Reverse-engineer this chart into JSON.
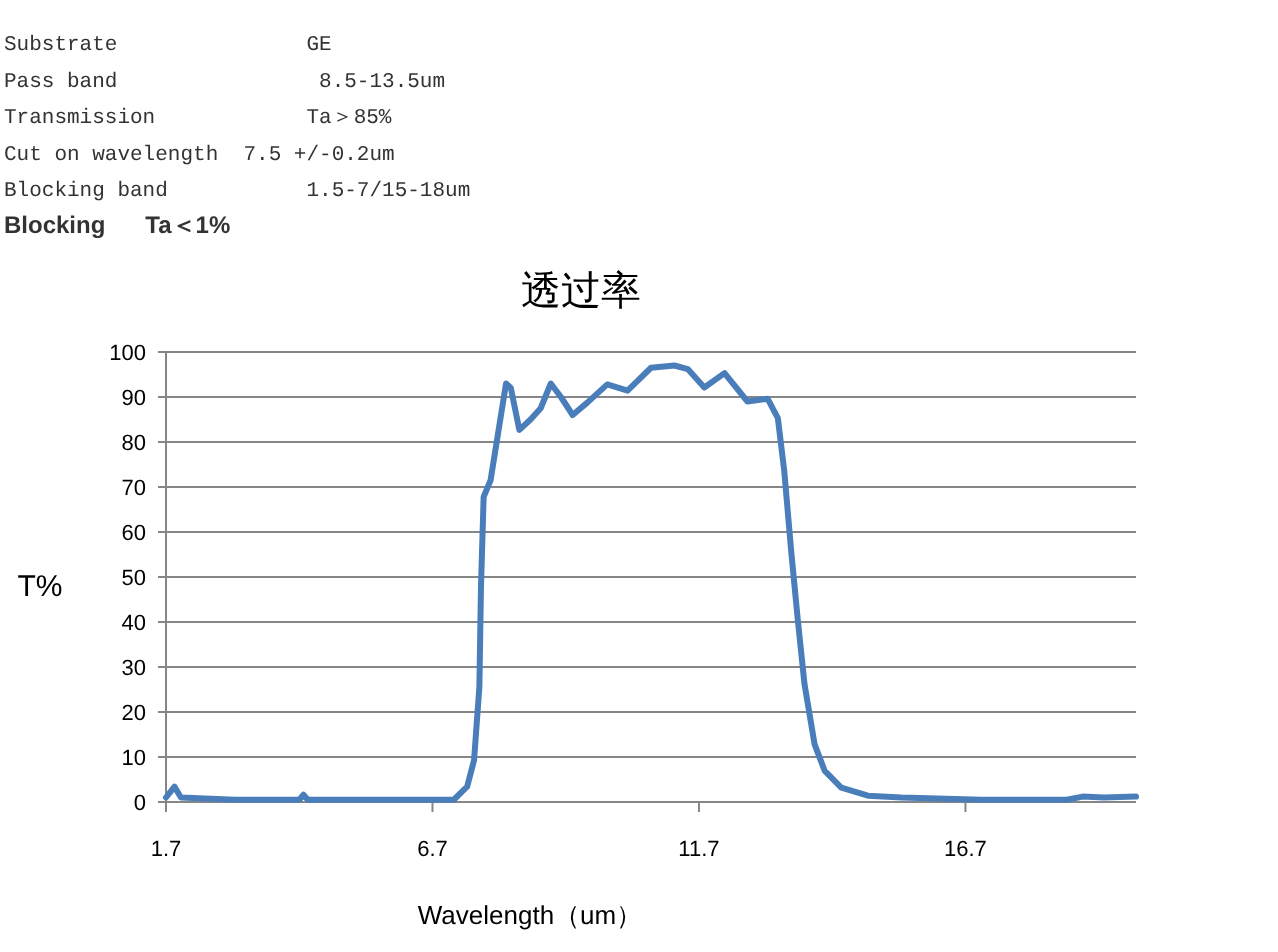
{
  "chart_data": {
    "type": "line",
    "title": "透过率",
    "xlabel": "Wavelength（um）",
    "ylabel": "T%",
    "annotations": [
      "Substrate               GE",
      "Pass band                8.5-13.5um",
      "Transmission            Ta＞85%",
      "Cut on wavelength  7.5 +/-0.2um",
      "Blocking band           1.5-7/15-18um",
      "Blocking      Ta＜1%"
    ],
    "x": [
      1.7,
      1.86,
      1.98,
      3.0,
      4.2,
      4.28,
      4.36,
      5.5,
      7.1,
      7.35,
      7.48,
      7.58,
      7.61,
      7.66,
      7.79,
      7.91,
      8.08,
      8.17,
      8.33,
      8.54,
      8.73,
      8.92,
      9.11,
      9.33,
      9.61,
      9.98,
      10.36,
      10.8,
      11.24,
      11.49,
      11.8,
      12.18,
      12.61,
      12.99,
      13.18,
      13.3,
      13.43,
      13.55,
      13.68,
      13.87,
      14.06,
      14.37,
      14.87,
      15.5,
      17.0,
      18.6,
      18.9,
      19.3,
      19.9
    ],
    "series": [
      {
        "color": "#4a7ebb",
        "values": [
          1,
          3.4,
          1,
          0.5,
          0.5,
          1.6,
          0.5,
          0.5,
          0.5,
          3.4,
          9.3,
          25.6,
          47.9,
          67.8,
          71.5,
          80.4,
          93,
          92,
          82.7,
          85,
          87.5,
          93,
          90,
          86,
          88.8,
          92.8,
          91.4,
          96.5,
          97,
          96.2,
          92.1,
          95.3,
          89,
          89.6,
          85.3,
          73.6,
          55.8,
          41,
          26.2,
          12.8,
          6.9,
          3.2,
          1.4,
          1,
          0.5,
          0.5,
          1.2,
          1,
          1.2
        ]
      }
    ],
    "xlim": [
      1.7,
      19.9
    ],
    "ylim": [
      0,
      100
    ],
    "xticks": [
      1.7,
      6.7,
      11.7,
      16.7
    ],
    "yticks": [
      0,
      10,
      20,
      30,
      40,
      50,
      60,
      70,
      80,
      90,
      100
    ],
    "grid": "y",
    "marker": "none",
    "line_style": "solid"
  }
}
